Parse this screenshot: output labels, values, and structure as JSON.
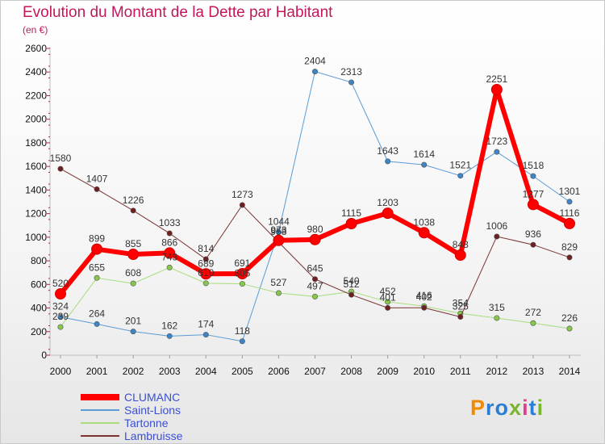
{
  "title": "Evolution du Montant de la Dette par Habitant",
  "subtitle": "(en €)",
  "logo": {
    "text": "Proxiti",
    "colors": [
      "#f08a00",
      "#2a7fd4",
      "#2a7fd4",
      "#79b62e",
      "#e23c8b",
      "#2a7fd4",
      "#79b62e"
    ]
  },
  "chart_data": {
    "type": "line",
    "x": [
      "2000",
      "2001",
      "2002",
      "2003",
      "2004",
      "2005",
      "2006",
      "2007",
      "2008",
      "2009",
      "2010",
      "2011",
      "2012",
      "2013",
      "2014"
    ],
    "ylim": [
      0,
      2600
    ],
    "yticks": [
      0,
      200,
      400,
      600,
      800,
      1000,
      1200,
      1400,
      1600,
      1800,
      2000,
      2200,
      2400,
      2600
    ],
    "grid": false,
    "legend_position": "bottom-left",
    "series": [
      {
        "name": "Saint-Lions",
        "color": "#5a9bd5",
        "point_color": "#3d85c6",
        "width": 1,
        "values": [
          324,
          264,
          201,
          162,
          174,
          118,
          1044,
          2404,
          2313,
          1643,
          1614,
          1521,
          1723,
          1518,
          1301
        ]
      },
      {
        "name": "Tartonne",
        "color": "#a8dc7e",
        "point_color": "#86c84a",
        "width": 1,
        "values": [
          239,
          655,
          608,
          743,
          610,
          605,
          527,
          497,
          540,
          452,
          416,
          354,
          315,
          272,
          226
        ]
      },
      {
        "name": "Lambruisse",
        "color": "#7a3232",
        "point_color": "#6e1f1f",
        "width": 1,
        "values": [
          1580,
          1407,
          1226,
          1033,
          814,
          1273,
          958,
          645,
          512,
          401,
          402,
          325,
          1006,
          936,
          829
        ]
      },
      {
        "name": "CLUMANC",
        "color": "#ff0000",
        "point_color": "#ff0000",
        "width": 6,
        "values": [
          520,
          899,
          855,
          866,
          689,
          691,
          973,
          980,
          1115,
          1203,
          1038,
          848,
          2251,
          1277,
          1116
        ]
      }
    ],
    "legend_order": [
      "CLUMANC",
      "Saint-Lions",
      "Tartonne",
      "Lambruisse"
    ]
  }
}
